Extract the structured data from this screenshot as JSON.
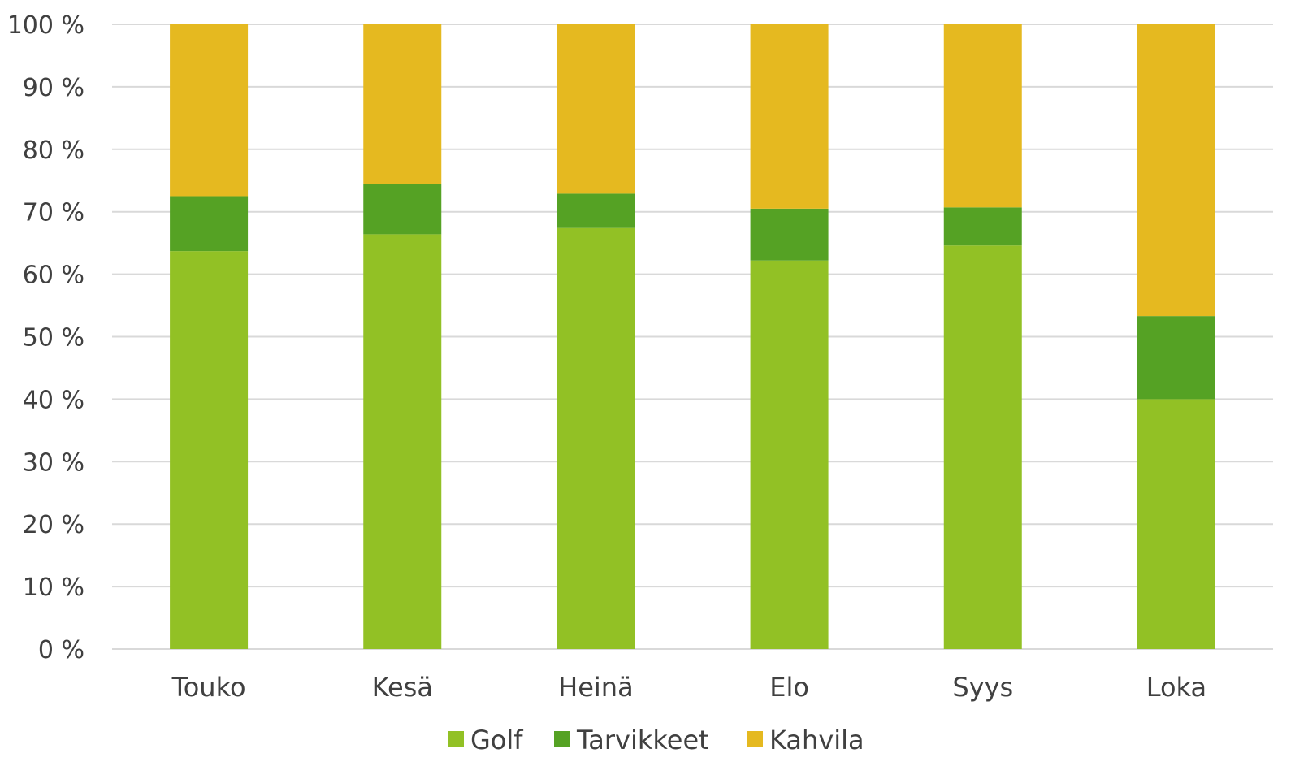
{
  "chart_data": {
    "type": "bar",
    "stacked": "percent",
    "categories": [
      "Touko",
      "Kesä",
      "Heinä",
      "Elo",
      "Syys",
      "Loka"
    ],
    "series": [
      {
        "name": "Golf",
        "color": "#92c125",
        "values": [
          63.7,
          66.4,
          67.4,
          62.2,
          64.6,
          40.0
        ]
      },
      {
        "name": "Tarvikkeet",
        "color": "#55a224",
        "values": [
          8.8,
          8.1,
          5.5,
          8.3,
          6.1,
          13.3
        ]
      },
      {
        "name": "Kahvila",
        "color": "#e5b920",
        "values": [
          27.5,
          25.5,
          27.1,
          29.5,
          29.3,
          46.7
        ]
      }
    ],
    "ylim": [
      0,
      100
    ],
    "yticks": [
      "0 %",
      "10 %",
      "20 %",
      "30 %",
      "40 %",
      "50 %",
      "60 %",
      "70 %",
      "80 %",
      "90 %",
      "100 %"
    ],
    "grid": true,
    "legend": "bottom"
  }
}
